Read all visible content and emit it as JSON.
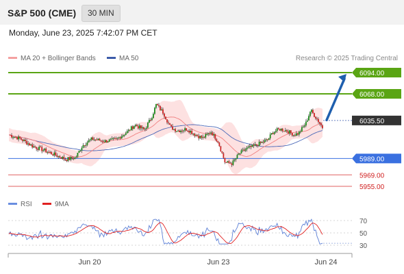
{
  "header": {
    "title": "S&P 500 (CME)",
    "timeframe": "30 MIN"
  },
  "timestamp": "Monday, June 23, 2025 7:42:07 PM CET",
  "legend": {
    "ma20_label": "MA 20 + Bollinger Bands",
    "ma50_label": "MA 50",
    "credit": "Research © 2025 Trading Central",
    "rsi_label": "RSI",
    "rsi_ma_label": "9MA"
  },
  "colors": {
    "bollinger_fill": "#fddcdc",
    "ma20": "#f08080",
    "ma50": "#4a68b8",
    "resistance": "#5aa514",
    "current": "#333333",
    "pivot": "#3a70e0",
    "support": "#e06060",
    "support_text": "#d02020",
    "rsi": "#5b7fd6",
    "rsi_ma": "#e02020",
    "arrow": "#1f5fae",
    "candle_up": "#1a8a1a",
    "candle_down": "#cc2222"
  },
  "chart_data": [
    {
      "type": "candlestick",
      "title": "S&P 500 (CME)",
      "ylim": [
        5950,
        6102
      ],
      "x_ticks": [
        "Jun 20",
        "Jun 23",
        "Jun 24"
      ],
      "levels": [
        {
          "value": 6094,
          "label": "6094.00",
          "kind": "resistance"
        },
        {
          "value": 6068,
          "label": "6068.00",
          "kind": "resistance"
        },
        {
          "value": 6035.5,
          "label": "6035.50",
          "kind": "current"
        },
        {
          "value": 5989,
          "label": "5989.00",
          "kind": "pivot"
        },
        {
          "value": 5969,
          "label": "5969.00",
          "kind": "support"
        },
        {
          "value": 5955,
          "label": "5955.00",
          "kind": "support"
        }
      ],
      "projection": {
        "from": 6036,
        "to": 6094
      }
    },
    {
      "type": "line",
      "title": "RSI",
      "ylim": [
        20,
        80
      ],
      "y_ticks": [
        "70",
        "50",
        "30"
      ],
      "series": [
        {
          "name": "RSI"
        },
        {
          "name": "9MA"
        }
      ]
    }
  ]
}
